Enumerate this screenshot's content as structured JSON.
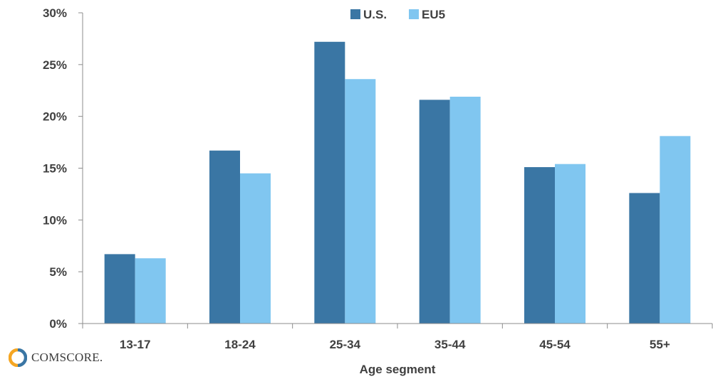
{
  "chart_data": {
    "type": "bar",
    "title": "",
    "xlabel": "Age segment",
    "ylabel": "",
    "categories": [
      "13-17",
      "18-24",
      "25-34",
      "35-44",
      "45-54",
      "55+"
    ],
    "series": [
      {
        "name": "U.S.",
        "color": "#3A76A4",
        "values": [
          6.7,
          16.7,
          27.2,
          21.6,
          15.1,
          12.6
        ]
      },
      {
        "name": "EU5",
        "color": "#80C6F0",
        "values": [
          6.3,
          14.5,
          23.6,
          21.9,
          15.4,
          18.1
        ]
      }
    ],
    "ylim": [
      0,
      30
    ],
    "yticks": [
      0,
      5,
      10,
      15,
      20,
      25,
      30
    ],
    "ytick_labels": [
      "0%",
      "5%",
      "10%",
      "15%",
      "20%",
      "25%",
      "30%"
    ],
    "grid": false,
    "legend_position": "top-center"
  },
  "logo": {
    "text": "COMSCORE.",
    "icon": "comscore-logo-icon",
    "colors": [
      "#F5A623",
      "#3A76A4"
    ]
  },
  "colors": {
    "axis": "#8C8C8C",
    "text": "#404040"
  }
}
